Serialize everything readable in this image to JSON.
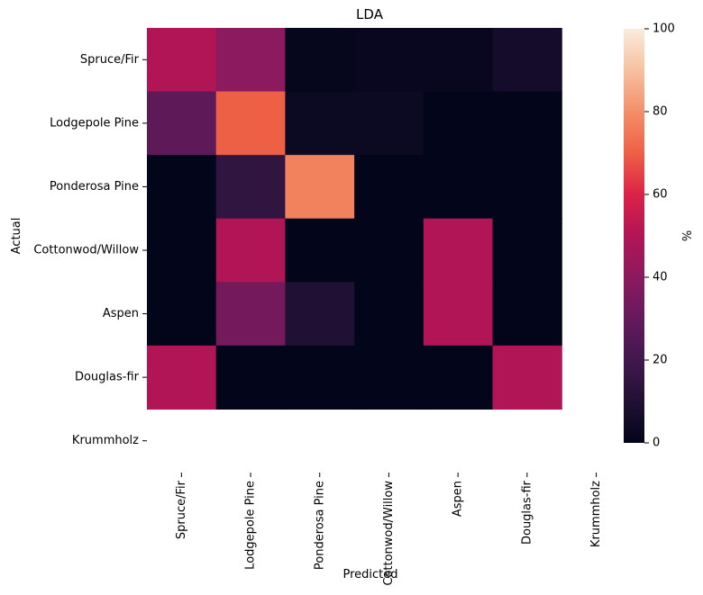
{
  "chart_data": {
    "type": "heatmap",
    "title": "LDA",
    "xlabel": "Predicted",
    "ylabel": "Actual",
    "x_categories": [
      "Spruce/Fir",
      "Lodgepole Pine",
      "Ponderosa Pine",
      "Cottonwod/Willow",
      "Aspen",
      "Douglas-fir",
      "Krummholz"
    ],
    "y_categories": [
      "Spruce/Fir",
      "Lodgepole Pine",
      "Ponderosa Pine",
      "Cottonwod/Willow",
      "Aspen",
      "Douglas-fir",
      "Krummholz"
    ],
    "values": [
      [
        50,
        40,
        1,
        2,
        2,
        6,
        null
      ],
      [
        28,
        70,
        3,
        3,
        0,
        0,
        null
      ],
      [
        0,
        15,
        77,
        0,
        0,
        0,
        null
      ],
      [
        0,
        50,
        0,
        0,
        50,
        0,
        null
      ],
      [
        0,
        34,
        10,
        0,
        50,
        0,
        null
      ],
      [
        50,
        0,
        0,
        0,
        0,
        50,
        null
      ],
      [
        null,
        null,
        null,
        null,
        null,
        null,
        null
      ]
    ],
    "colorbar": {
      "label": "%",
      "range": [
        0,
        100
      ],
      "ticks": [
        "0",
        "20",
        "40",
        "60",
        "80",
        "100"
      ]
    },
    "colormap": "rocket"
  }
}
